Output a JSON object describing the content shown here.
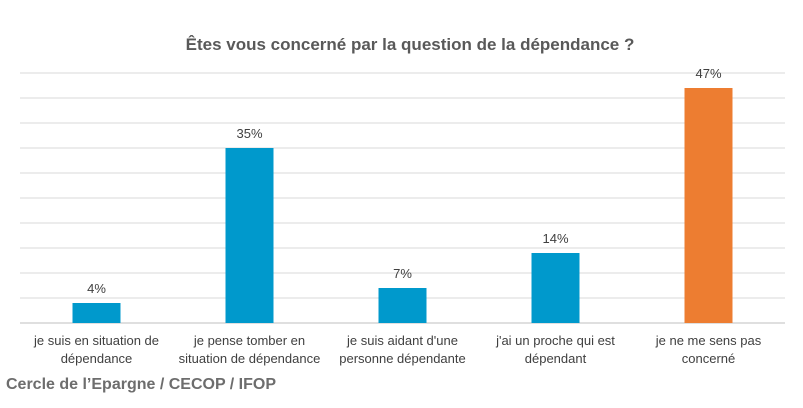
{
  "chart_data": {
    "type": "bar",
    "title": "Êtes vous concerné par la question de la dépendance  ?",
    "categories": [
      "je suis en situation de dépendance",
      "je pense tomber en situation de dépendance",
      "je suis aidant d'une personne dépendante",
      "j'ai un proche qui est dépendant",
      "je ne me sens pas concerné"
    ],
    "values": [
      4,
      35,
      7,
      14,
      47
    ],
    "value_labels": [
      "4%",
      "35%",
      "7%",
      "14%",
      "47%"
    ],
    "colors": [
      "#0099cc",
      "#0099cc",
      "#0099cc",
      "#0099cc",
      "#ed7d31"
    ],
    "ylim": [
      0,
      50
    ],
    "yticks": [
      0,
      5,
      10,
      15,
      20,
      25,
      30,
      35,
      40,
      45,
      50
    ],
    "grid": true,
    "source": "Cercle de l’Epargne / CECOP / IFOP"
  }
}
